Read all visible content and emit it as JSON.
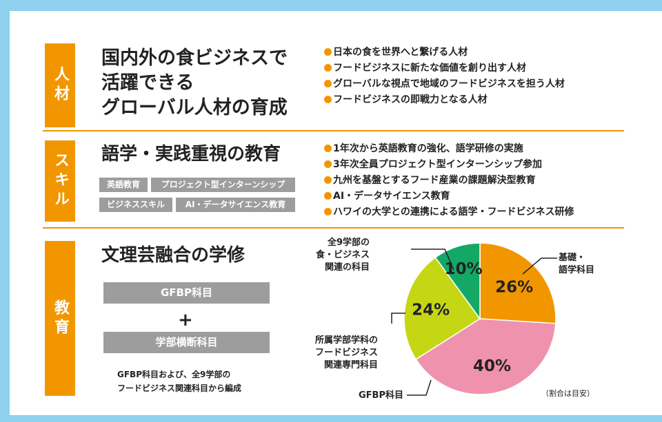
{
  "sections": {
    "jinzai": {
      "tab": "人材",
      "heading_lines": [
        "国内外の食ビジネスで",
        "活躍できる",
        "グローバル人材の育成"
      ],
      "bullets": [
        "日本の食を世界へと繋げる人材",
        "フードビジネスに新たな価値を創り出す人材",
        "グローバルな視点で地域のフードビジネスを担う人材",
        "フードビジネスの即戦力となる人材"
      ]
    },
    "skill": {
      "tab": "スキル",
      "heading": "語学・実践重視の教育",
      "tags": [
        "英語教育",
        "プロジェクト型インターンシップ",
        "ビジネススキル",
        "AI・データサイエンス教育"
      ],
      "bullets": [
        "1年次から英語教育の強化、語学研修の実施",
        "3年次全員プロジェクト型インターンシップ参加",
        "九州を基盤とするフード産業の課題解決型教育",
        "AI・データサイエンス教育",
        "ハワイの大学との連携による語学・フードビジネス研修"
      ]
    },
    "kyoiku": {
      "tab": "教育",
      "heading": "文理芸融合の学修",
      "bar1": "GFBP科目",
      "plus": "+",
      "bar2": "学部横断科目",
      "note_lines": [
        "GFBP科目および、全9学部の",
        "フードビジネス関連科目から編成"
      ]
    }
  },
  "chart_data": {
    "type": "pie",
    "note": "（割合は目安）",
    "slices": [
      {
        "label_lines": [
          "基礎・",
          "語学科目"
        ],
        "value": 26,
        "value_label": "26%",
        "color": "#f29600"
      },
      {
        "label_lines": [
          "GFBP科目"
        ],
        "value": 40,
        "value_label": "40%",
        "color": "#ef92ad"
      },
      {
        "label_lines": [
          "所属学部学科の",
          "フードビジネス",
          "関連専門科目"
        ],
        "value": 24,
        "value_label": "24%",
        "color": "#c5d714"
      },
      {
        "label_lines": [
          "全9学部の",
          "食・ビジネス",
          "関連の科目"
        ],
        "value": 10,
        "value_label": "10%",
        "color": "#14a866"
      }
    ]
  }
}
